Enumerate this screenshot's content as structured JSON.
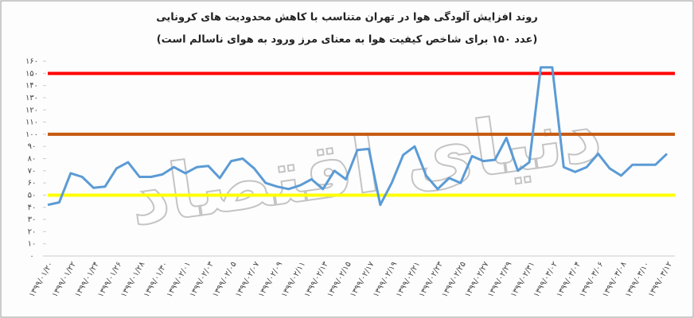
{
  "chart_data": {
    "type": "line",
    "title": "روند افزایش آلودگی هوا در تهران متناسب با کاهش محدودیت های کرونایی",
    "subtitle": "(عدد ۱۵۰ برای شاخص کیفیت هوا به معنای مرز ورود به هوای ناسالم است)",
    "watermark": "دنیای اقتصاد",
    "categories": [
      "۱۳۹۹/۰۱/۲۰",
      null,
      "۱۳۹۹/۰۱/۲۲",
      null,
      "۱۳۹۹/۰۱/۲۴",
      null,
      "۱۳۹۹/۰۱/۲۶",
      null,
      "۱۳۹۹/۰۱/۲۸",
      null,
      "۱۳۹۹/۰۱/۳۰",
      null,
      "۱۳۹۹/۰۲/۰۱",
      null,
      "۱۳۹۹/۰۲/۰۳",
      null,
      "۱۳۹۹/۰۲/۰۵",
      null,
      "۱۳۹۹/۰۲/۰۷",
      null,
      "۱۳۹۹/۰۲/۰۹",
      null,
      "۱۳۹۹/۰۲/۱۱",
      null,
      "۱۳۹۹/۰۲/۱۳",
      null,
      "۱۳۹۹/۰۲/۱۵",
      null,
      "۱۳۹۹/۰۲/۱۷",
      null,
      "۱۳۹۹/۰۲/۱۹",
      null,
      "۱۳۹۹/۰۲/۲۱",
      null,
      "۱۳۹۹/۰۲/۲۳",
      null,
      "۱۳۹۹/۰۲/۲۵",
      null,
      "۱۳۹۹/۰۲/۲۷",
      null,
      "۱۳۹۹/۰۲/۲۹",
      null,
      "۱۳۹۹/۰۲/۳۱",
      null,
      "۱۳۹۹/۰۳/۰۲",
      null,
      "۱۳۹۹/۰۳/۰۴",
      null,
      "۱۳۹۹/۰۳/۰۶",
      null,
      "۱۳۹۹/۰۳/۰۸",
      null,
      "۱۳۹۹/۰۳/۱۰",
      null,
      "۱۳۹۹/۰۳/۱۲"
    ],
    "values": [
      42,
      44,
      68,
      65,
      56,
      57,
      72,
      77,
      65,
      65,
      67,
      73,
      68,
      73,
      74,
      64,
      78,
      80,
      72,
      60,
      57,
      55,
      58,
      63,
      55,
      70,
      63,
      87,
      88,
      42,
      60,
      83,
      90,
      66,
      55,
      64,
      60,
      82,
      78,
      79,
      97,
      70,
      77,
      155,
      155,
      73,
      69,
      73,
      84,
      72,
      66,
      75,
      75,
      75,
      84
    ],
    "color": "#5b9bd5",
    "reference_lines": [
      {
        "value": 150,
        "color": "#ff0000"
      },
      {
        "value": 100,
        "color": "#c55a11"
      },
      {
        "value": 50,
        "color": "#ffff00"
      }
    ],
    "ylim": [
      0,
      160
    ],
    "yticks": [
      {
        "value": 0,
        "label": "۰"
      },
      {
        "value": 10,
        "label": "۱۰"
      },
      {
        "value": 20,
        "label": "۲۰"
      },
      {
        "value": 30,
        "label": "۳۰"
      },
      {
        "value": 40,
        "label": "۴۰"
      },
      {
        "value": 50,
        "label": "۵۰"
      },
      {
        "value": 60,
        "label": "۶۰"
      },
      {
        "value": 70,
        "label": "۷۰"
      },
      {
        "value": 80,
        "label": "۸۰"
      },
      {
        "value": 90,
        "label": "۹۰"
      },
      {
        "value": 100,
        "label": "۱۰۰"
      },
      {
        "value": 110,
        "label": "۱۱۰"
      },
      {
        "value": 120,
        "label": "۱۲۰"
      },
      {
        "value": 130,
        "label": "۱۳۰"
      },
      {
        "value": 140,
        "label": "۱۴۰"
      },
      {
        "value": 150,
        "label": "۱۵۰"
      },
      {
        "value": 160,
        "label": "۱۶۰"
      }
    ],
    "grid": false
  }
}
